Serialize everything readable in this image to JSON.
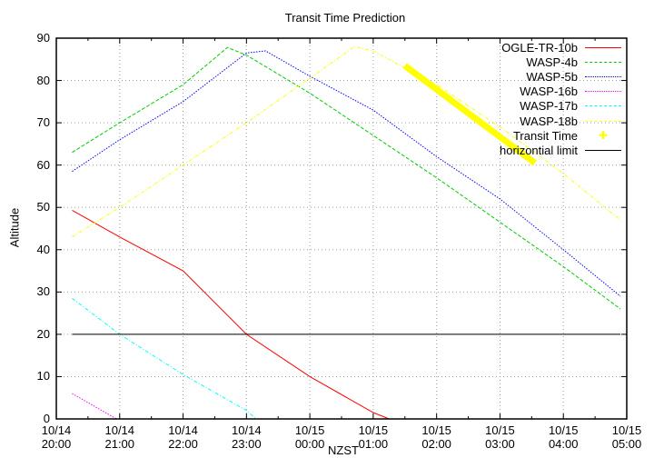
{
  "chart_data": {
    "type": "line",
    "title": "Transit Time Prediction",
    "xlabel": "NZST",
    "ylabel": "Altitude",
    "ylim": [
      0,
      90
    ],
    "yticks": [
      0,
      10,
      20,
      30,
      40,
      50,
      60,
      70,
      80,
      90
    ],
    "xticks": [
      {
        "date": "10/14",
        "time": "20:00"
      },
      {
        "date": "10/14",
        "time": "21:00"
      },
      {
        "date": "10/14",
        "time": "22:00"
      },
      {
        "date": "10/14",
        "time": "23:00"
      },
      {
        "date": "10/15",
        "time": "00:00"
      },
      {
        "date": "10/15",
        "time": "01:00"
      },
      {
        "date": "10/15",
        "time": "02:00"
      },
      {
        "date": "10/15",
        "time": "03:00"
      },
      {
        "date": "10/15",
        "time": "04:00"
      },
      {
        "date": "10/15",
        "time": "05:00"
      }
    ],
    "xrange_hours": [
      20.0,
      29.0
    ],
    "grid": true,
    "legend_position": "top-right",
    "series": [
      {
        "name": "OGLE-TR-10b",
        "color": "#ff0000",
        "style": "solid",
        "points": [
          [
            20.25,
            49.3
          ],
          [
            21.0,
            43.0
          ],
          [
            22.0,
            35.0
          ],
          [
            23.0,
            20.0
          ],
          [
            24.0,
            10.0
          ],
          [
            25.0,
            1.5
          ],
          [
            25.25,
            0
          ]
        ]
      },
      {
        "name": "WASP-4b",
        "color": "#00cc00",
        "style": "dashed",
        "points": [
          [
            20.25,
            63.0
          ],
          [
            21.0,
            70.0
          ],
          [
            22.0,
            79.0
          ],
          [
            22.7,
            87.8
          ],
          [
            23.0,
            86.0
          ],
          [
            24.0,
            77.0
          ],
          [
            25.0,
            67.0
          ],
          [
            26.0,
            57.0
          ],
          [
            27.0,
            46.5
          ],
          [
            28.0,
            36.0
          ],
          [
            28.9,
            26.0
          ]
        ]
      },
      {
        "name": "WASP-5b",
        "color": "#0000ff",
        "style": "dotted",
        "points": [
          [
            20.25,
            58.5
          ],
          [
            21.0,
            66.0
          ],
          [
            22.0,
            75.0
          ],
          [
            23.0,
            86.5
          ],
          [
            23.3,
            87.0
          ],
          [
            24.0,
            81.0
          ],
          [
            25.0,
            73.0
          ],
          [
            26.0,
            62.0
          ],
          [
            27.0,
            52.0
          ],
          [
            28.0,
            40.0
          ],
          [
            28.9,
            29.0
          ]
        ]
      },
      {
        "name": "WASP-16b",
        "color": "#ff00ff",
        "style": "dotted",
        "points": [
          [
            20.25,
            6.0
          ],
          [
            20.6,
            3.0
          ],
          [
            20.95,
            0
          ]
        ]
      },
      {
        "name": "WASP-17b",
        "color": "#00ffff",
        "style": "dash-dot",
        "points": [
          [
            20.25,
            28.5
          ],
          [
            21.0,
            20.0
          ],
          [
            22.0,
            10.5
          ],
          [
            23.0,
            2.0
          ],
          [
            23.15,
            0
          ]
        ]
      },
      {
        "name": "WASP-18b",
        "color": "#ffff00",
        "style": "dash-dot",
        "points": [
          [
            20.25,
            43.0
          ],
          [
            21.0,
            50.0
          ],
          [
            22.0,
            60.0
          ],
          [
            23.0,
            70.0
          ],
          [
            24.0,
            80.5
          ],
          [
            24.7,
            88.0
          ],
          [
            25.0,
            87.0
          ],
          [
            25.5,
            83.0
          ],
          [
            26.0,
            79.0
          ],
          [
            27.0,
            69.0
          ],
          [
            28.0,
            58.0
          ],
          [
            28.9,
            47.0
          ]
        ]
      },
      {
        "name": "Transit Time",
        "color": "#ffff00",
        "style": "thick-points",
        "points": [
          [
            25.5,
            83.5
          ],
          [
            27.55,
            60.5
          ]
        ]
      },
      {
        "name": "horizontial limit",
        "color": "#000000",
        "style": "solid",
        "points": [
          [
            20.25,
            20.0
          ],
          [
            28.9,
            20.0
          ]
        ]
      }
    ]
  },
  "legend": [
    {
      "label": "OGLE-TR-10b",
      "color": "#ff0000",
      "style": "solid"
    },
    {
      "label": "WASP-4b",
      "color": "#00cc00",
      "style": "dashed"
    },
    {
      "label": "WASP-5b",
      "color": "#0000ff",
      "style": "dotted"
    },
    {
      "label": "WASP-16b",
      "color": "#ff00ff",
      "style": "dotted"
    },
    {
      "label": "WASP-17b",
      "color": "#00ffff",
      "style": "dash-dot"
    },
    {
      "label": "WASP-18b",
      "color": "#ffff00",
      "style": "dash-dot"
    },
    {
      "label": "Transit Time",
      "color": "#ffff00",
      "style": "point"
    },
    {
      "label": "horizontial limit",
      "color": "#000000",
      "style": "solid"
    }
  ]
}
